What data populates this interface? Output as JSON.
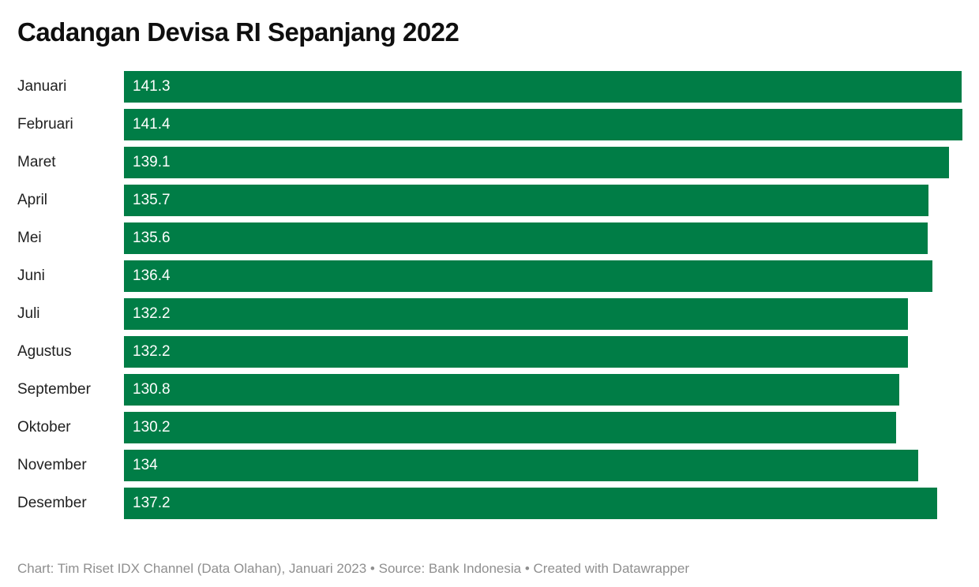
{
  "header": {
    "title": "Cadangan Devisa RI Sepanjang 2022"
  },
  "chart_data": {
    "type": "bar",
    "orientation": "horizontal",
    "title": "Cadangan Devisa RI Sepanjang 2022",
    "categories": [
      "Januari",
      "Februari",
      "Maret",
      "April",
      "Mei",
      "Juni",
      "Juli",
      "Agustus",
      "September",
      "Oktober",
      "November",
      "Desember"
    ],
    "values": [
      141.3,
      141.4,
      139.1,
      135.7,
      135.6,
      136.4,
      132.2,
      132.2,
      130.8,
      130.2,
      134,
      137.2
    ],
    "value_labels": [
      "141.3",
      "141.4",
      "139.1",
      "135.7",
      "135.6",
      "136.4",
      "132.2",
      "132.2",
      "130.8",
      "130.2",
      "134",
      "137.2"
    ],
    "xlabel": "",
    "ylabel": "",
    "xlim": [
      0,
      141.4
    ],
    "grid": false,
    "legend": false,
    "bar_color": "#007d46",
    "value_label_color": "#ffffff"
  },
  "footer": {
    "text": "Chart: Tim Riset IDX Channel (Data Olahan), Januari 2023 • Source: Bank Indonesia • Created with Datawrapper"
  }
}
